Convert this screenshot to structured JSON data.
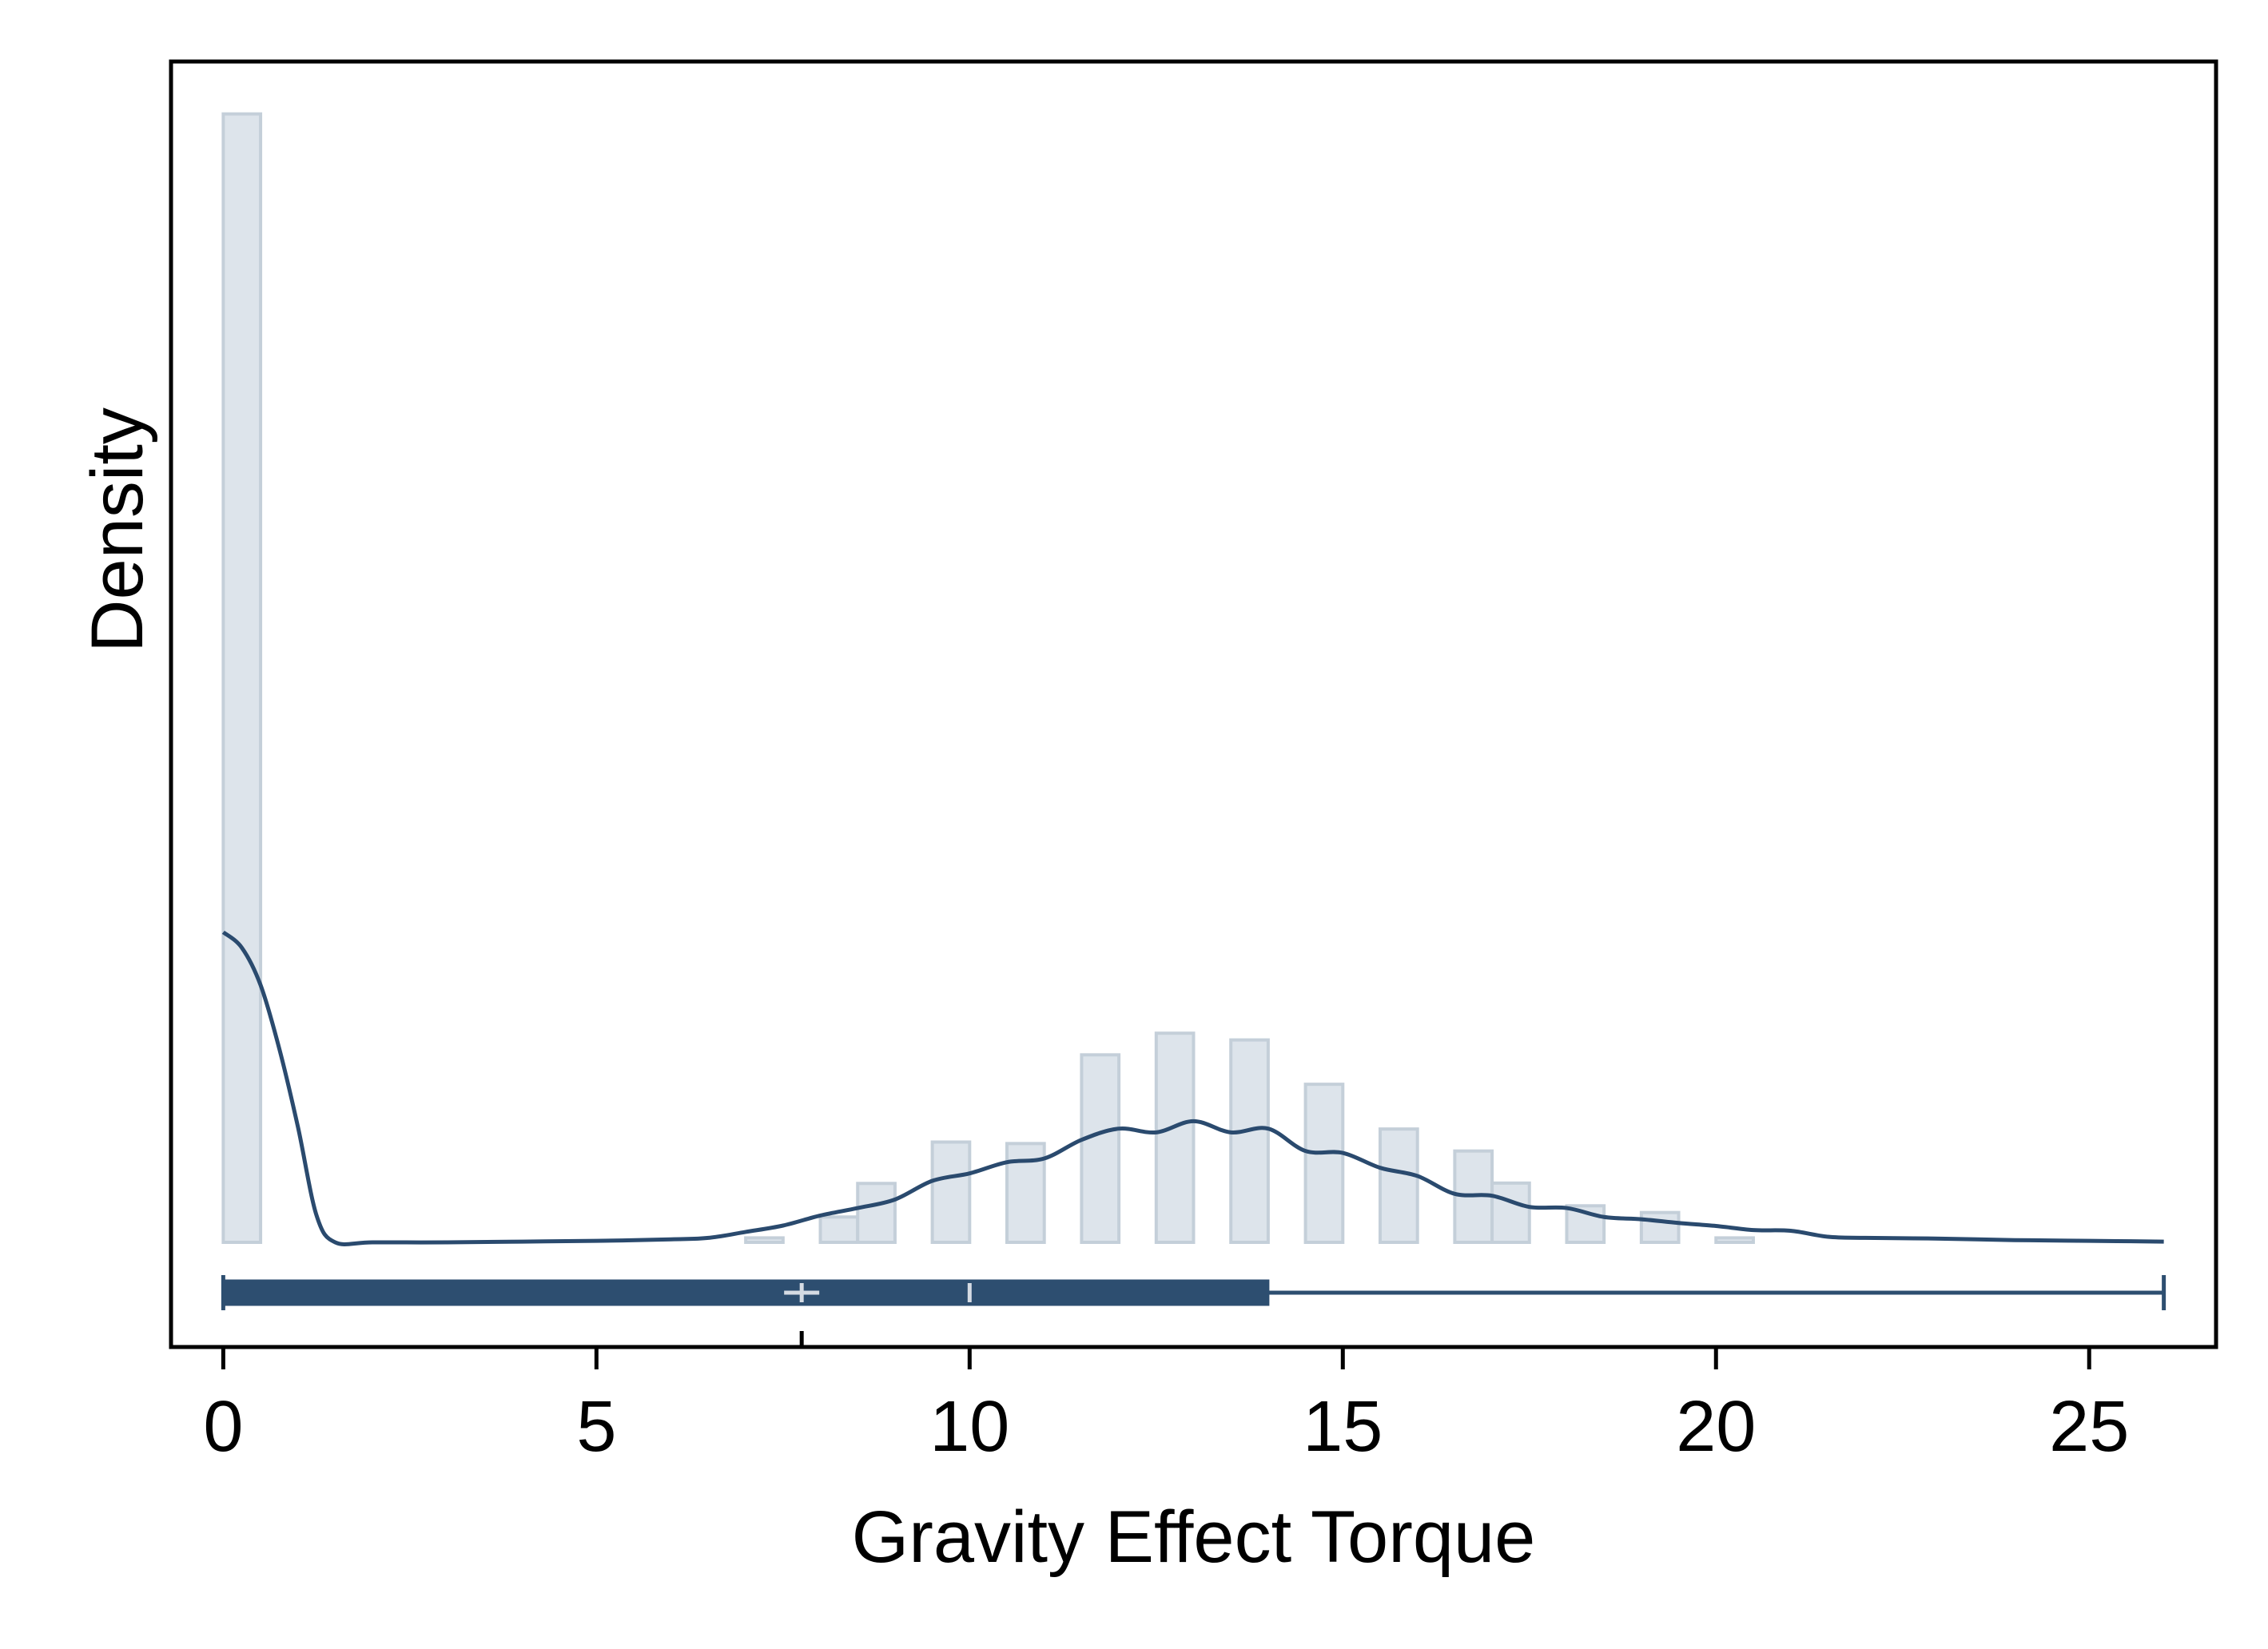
{
  "chart_data": {
    "type": "histogram",
    "xlabel": "Gravity Effect Torque",
    "ylabel": "Density",
    "xlim": [
      -0.7,
      26.7
    ],
    "x_ticks": [
      0,
      5,
      10,
      15,
      20,
      25
    ],
    "x_tick_labels": [
      "0",
      "5",
      "10",
      "15",
      "20",
      "25"
    ],
    "y_ticks_shown": false,
    "grid": false,
    "legend": "none",
    "histogram": {
      "bin_width": 0.5,
      "bins": [
        {
          "start": 0.0,
          "density": 0.3027
        },
        {
          "start": 7.0,
          "density": 0.0012
        },
        {
          "start": 8.0,
          "density": 0.0068
        },
        {
          "start": 8.5,
          "density": 0.0158
        },
        {
          "start": 9.5,
          "density": 0.0269
        },
        {
          "start": 10.5,
          "density": 0.0265
        },
        {
          "start": 11.5,
          "density": 0.0503
        },
        {
          "start": 12.5,
          "density": 0.0561
        },
        {
          "start": 13.5,
          "density": 0.0543
        },
        {
          "start": 14.5,
          "density": 0.0424
        },
        {
          "start": 15.5,
          "density": 0.0304
        },
        {
          "start": 16.5,
          "density": 0.0245
        },
        {
          "start": 17.0,
          "density": 0.0159
        },
        {
          "start": 18.0,
          "density": 0.0098
        },
        {
          "start": 19.0,
          "density": 0.008
        },
        {
          "start": 20.0,
          "density": 0.0012
        }
      ]
    },
    "kde": {
      "x": [
        0.0,
        0.25,
        0.5,
        0.75,
        1.0,
        1.25,
        1.5,
        2.0,
        3.0,
        4.0,
        5.0,
        6.0,
        6.5,
        7.0,
        7.5,
        8.0,
        8.5,
        9.0,
        9.5,
        10.0,
        10.5,
        11.0,
        11.5,
        12.0,
        12.5,
        13.0,
        13.5,
        14.0,
        14.5,
        15.0,
        15.5,
        16.0,
        16.5,
        17.0,
        17.5,
        18.0,
        18.5,
        19.0,
        19.5,
        20.0,
        20.5,
        21.0,
        21.5,
        22.0,
        23.0,
        24.0,
        25.0,
        26.0
      ],
      "y": [
        0.0832,
        0.079,
        0.069,
        0.052,
        0.031,
        0.0072,
        0.0,
        0.0,
        0.0,
        0.0002,
        0.0004,
        0.0008,
        0.0012,
        0.0028,
        0.0045,
        0.0072,
        0.0092,
        0.0115,
        0.0165,
        0.0185,
        0.0215,
        0.0225,
        0.0275,
        0.0305,
        0.0295,
        0.0325,
        0.0295,
        0.0305,
        0.0245,
        0.024,
        0.02,
        0.0178,
        0.013,
        0.0125,
        0.0095,
        0.0092,
        0.0068,
        0.0062,
        0.0052,
        0.0044,
        0.0033,
        0.0031,
        0.0015,
        0.0012,
        0.001,
        0.0006,
        0.0004,
        0.0002
      ]
    },
    "box_plot": {
      "min": 0,
      "q1": 0,
      "median": 10,
      "mean": 7.75,
      "q3": 14,
      "max": 26,
      "colors": {
        "box": "#2d4e70",
        "markers": "#d5dbe3"
      }
    },
    "colors": {
      "bar_fill": "#dde4eb",
      "bar_edge": "#c4cfd9",
      "kde_line": "#2a4a6e",
      "axis": "#000000"
    }
  }
}
